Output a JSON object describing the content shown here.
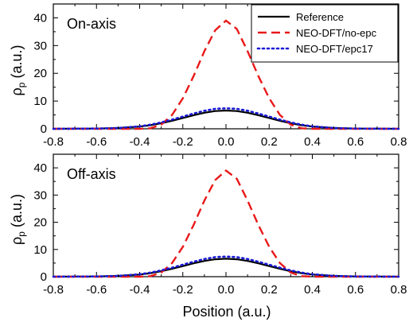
{
  "chart_data": [
    {
      "type": "line",
      "panel_label": "On-axis",
      "xlabel": "",
      "ylabel": "ρp (a.u.)",
      "xlim": [
        -0.8,
        0.8
      ],
      "ylim": [
        0,
        45
      ],
      "xticks": [
        "-0.8",
        "-0.6",
        "-0.4",
        "-0.2",
        "0.0",
        "0.2",
        "0.4",
        "0.6",
        "0.8"
      ],
      "yticks": [
        "0",
        "10",
        "20",
        "30",
        "40"
      ],
      "legend_position": "top-right",
      "x": [
        -0.8,
        -0.6,
        -0.5,
        -0.4,
        -0.35,
        -0.3,
        -0.25,
        -0.2,
        -0.15,
        -0.1,
        -0.05,
        0.0,
        0.05,
        0.1,
        0.15,
        0.2,
        0.25,
        0.3,
        0.35,
        0.4,
        0.5,
        0.6,
        0.8
      ],
      "series": [
        {
          "name": "Reference",
          "color": "#000000",
          "style": "solid",
          "values": [
            0.0,
            0.1,
            0.3,
            0.8,
            1.3,
            2.0,
            2.9,
            3.9,
            4.9,
            5.8,
            6.4,
            6.6,
            6.4,
            5.8,
            4.9,
            3.9,
            2.9,
            2.0,
            1.3,
            0.8,
            0.3,
            0.1,
            0.0
          ]
        },
        {
          "name": "NEO-DFT/no-epc",
          "color": "#e8191a",
          "style": "dash",
          "values": [
            0.0,
            0.0,
            0.0,
            0.0,
            0.2,
            1.5,
            5.0,
            11.0,
            19.0,
            28.0,
            35.5,
            39.0,
            36.0,
            28.0,
            19.0,
            11.0,
            5.0,
            1.5,
            0.2,
            0.0,
            0.0,
            0.0,
            0.0
          ]
        },
        {
          "name": "NEO-DFT/epc17",
          "color": "#1a1ad6",
          "style": "dot",
          "values": [
            0.0,
            0.1,
            0.3,
            0.9,
            1.5,
            2.3,
            3.3,
            4.4,
            5.5,
            6.5,
            7.2,
            7.4,
            7.2,
            6.5,
            5.5,
            4.4,
            3.3,
            2.3,
            1.5,
            0.9,
            0.3,
            0.1,
            0.0
          ]
        }
      ]
    },
    {
      "type": "line",
      "panel_label": "Off-axis",
      "xlabel": "Position (a.u.)",
      "ylabel": "ρp (a.u.)",
      "xlim": [
        -0.8,
        0.8
      ],
      "ylim": [
        0,
        45
      ],
      "xticks": [
        "-0.8",
        "-0.6",
        "-0.4",
        "-0.2",
        "0.0",
        "0.2",
        "0.4",
        "0.6",
        "0.8"
      ],
      "yticks": [
        "0",
        "10",
        "20",
        "30",
        "40"
      ],
      "x": [
        -0.8,
        -0.6,
        -0.5,
        -0.4,
        -0.35,
        -0.3,
        -0.25,
        -0.2,
        -0.15,
        -0.1,
        -0.05,
        0.0,
        0.05,
        0.1,
        0.15,
        0.2,
        0.25,
        0.3,
        0.35,
        0.4,
        0.5,
        0.6,
        0.8
      ],
      "series": [
        {
          "name": "Reference",
          "color": "#000000",
          "style": "solid",
          "values": [
            0.0,
            0.1,
            0.3,
            0.8,
            1.3,
            2.0,
            2.9,
            3.9,
            4.9,
            5.8,
            6.4,
            6.6,
            6.4,
            5.8,
            4.9,
            3.9,
            2.9,
            2.0,
            1.3,
            0.8,
            0.3,
            0.1,
            0.0
          ]
        },
        {
          "name": "NEO-DFT/no-epc",
          "color": "#e8191a",
          "style": "dash",
          "values": [
            0.0,
            0.0,
            0.0,
            0.0,
            0.2,
            1.5,
            5.0,
            11.0,
            19.0,
            28.0,
            35.5,
            39.0,
            36.0,
            28.0,
            19.0,
            11.0,
            5.0,
            1.5,
            0.2,
            0.0,
            0.0,
            0.0,
            0.0
          ]
        },
        {
          "name": "NEO-DFT/epc17",
          "color": "#1a1ad6",
          "style": "dot",
          "values": [
            0.0,
            0.1,
            0.3,
            0.9,
            1.5,
            2.3,
            3.3,
            4.4,
            5.5,
            6.5,
            7.2,
            7.4,
            7.2,
            6.5,
            5.5,
            4.4,
            3.3,
            2.3,
            1.5,
            0.9,
            0.3,
            0.1,
            0.0
          ]
        }
      ]
    }
  ]
}
